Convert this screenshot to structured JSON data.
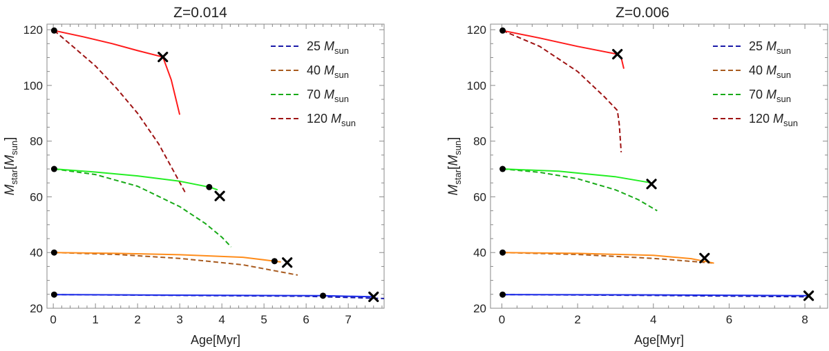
{
  "chart_data": [
    {
      "type": "line",
      "title": "Z=0.014",
      "xlabel": "Age[Myr]",
      "ylabel": {
        "main": "M",
        "sub": "star",
        "bracket_main": "M",
        "bracket_sub": "sun"
      },
      "xlim": [
        -0.15,
        7.85
      ],
      "ylim": [
        20,
        122
      ],
      "xticks": [
        0,
        1,
        2,
        3,
        4,
        5,
        6,
        7
      ],
      "yticks": [
        20,
        40,
        60,
        80,
        100,
        120
      ],
      "legend": [
        {
          "num": "25",
          "unit": "M",
          "unit_sub": "sun",
          "color": "#1a1aa8"
        },
        {
          "num": "40",
          "unit": "M",
          "unit_sub": "sun",
          "color": "#a85a1e"
        },
        {
          "num": "70",
          "unit": "M",
          "unit_sub": "sun",
          "color": "#18aa18"
        },
        {
          "num": "120",
          "unit": "M",
          "unit_sub": "sun",
          "color": "#9e1212"
        }
      ],
      "series": [
        {
          "name": "120 solid",
          "style": "solid",
          "color": "#ff1a1a",
          "points": [
            [
              0.02,
              119.7
            ],
            [
              0.7,
              117.5
            ],
            [
              1.4,
              115.0
            ],
            [
              2.0,
              112.5
            ],
            [
              2.6,
              110.2
            ],
            [
              2.8,
              102.0
            ],
            [
              3.0,
              89.5
            ]
          ]
        },
        {
          "name": "120 dashed",
          "style": "dashed",
          "color": "#9e1212",
          "points": [
            [
              0.02,
              119.7
            ],
            [
              0.5,
              113.5
            ],
            [
              1.0,
              107.0
            ],
            [
              1.5,
              99.0
            ],
            [
              2.0,
              90.0
            ],
            [
              2.5,
              79.0
            ],
            [
              2.9,
              68.0
            ],
            [
              3.15,
              61.0
            ]
          ]
        },
        {
          "name": "70 solid",
          "style": "solid",
          "color": "#22ee22",
          "points": [
            [
              0.02,
              70.0
            ],
            [
              1.0,
              68.9
            ],
            [
              2.0,
              67.5
            ],
            [
              3.0,
              65.6
            ],
            [
              3.7,
              63.5
            ],
            [
              3.75,
              63.3
            ],
            [
              3.9,
              62.5
            ]
          ]
        },
        {
          "name": "70 dashed",
          "style": "dashed",
          "color": "#18aa18",
          "points": [
            [
              0.02,
              70.0
            ],
            [
              1.0,
              68.0
            ],
            [
              2.0,
              63.8
            ],
            [
              3.0,
              56.5
            ],
            [
              3.6,
              50.5
            ],
            [
              4.0,
              45.5
            ],
            [
              4.22,
              42.0
            ]
          ]
        },
        {
          "name": "40 solid",
          "style": "solid",
          "color": "#ff8c1a",
          "points": [
            [
              0.02,
              40.0
            ],
            [
              1.5,
              39.7
            ],
            [
              3.0,
              39.2
            ],
            [
              4.5,
              38.3
            ],
            [
              5.25,
              36.9
            ],
            [
              5.4,
              36.6
            ]
          ]
        },
        {
          "name": "40 dashed",
          "style": "dashed",
          "color": "#a85a1e",
          "points": [
            [
              0.02,
              40.0
            ],
            [
              1.5,
              39.3
            ],
            [
              3.0,
              37.9
            ],
            [
              4.5,
              35.6
            ],
            [
              5.8,
              31.9
            ]
          ]
        },
        {
          "name": "25 solid",
          "style": "solid",
          "color": "#1a2ae8",
          "points": [
            [
              0.02,
              24.9
            ],
            [
              3.0,
              24.7
            ],
            [
              6.4,
              24.5
            ],
            [
              7.6,
              24.1
            ]
          ]
        },
        {
          "name": "25 dashed",
          "style": "dashed",
          "color": "#1a1aa8",
          "points": [
            [
              0.02,
              24.9
            ],
            [
              3.0,
              24.6
            ],
            [
              6.0,
              24.3
            ],
            [
              7.85,
              23.5
            ]
          ]
        }
      ],
      "dots": [
        [
          0.02,
          119.7
        ],
        [
          0.02,
          70.0
        ],
        [
          0.02,
          40.0
        ],
        [
          0.02,
          24.9
        ],
        [
          3.7,
          63.5
        ],
        [
          5.25,
          36.9
        ],
        [
          6.4,
          24.5
        ]
      ],
      "crosses": [
        [
          2.6,
          110.2
        ],
        [
          3.95,
          60.3
        ],
        [
          5.55,
          36.4
        ],
        [
          7.6,
          24.1
        ]
      ]
    },
    {
      "type": "line",
      "title": "Z=0.006",
      "xlabel": "Age[Myr]",
      "ylabel": {
        "main": "M",
        "sub": "star",
        "bracket_main": "M",
        "bracket_sub": "sun"
      },
      "xlim": [
        -0.3,
        8.6
      ],
      "ylim": [
        20,
        122
      ],
      "xticks": [
        0,
        2,
        4,
        6,
        8
      ],
      "yticks": [
        20,
        40,
        60,
        80,
        100,
        120
      ],
      "legend": [
        {
          "num": "25",
          "unit": "M",
          "unit_sub": "sun",
          "color": "#1a1aa8"
        },
        {
          "num": "40",
          "unit": "M",
          "unit_sub": "sun",
          "color": "#a85a1e"
        },
        {
          "num": "70",
          "unit": "M",
          "unit_sub": "sun",
          "color": "#18aa18"
        },
        {
          "num": "120",
          "unit": "M",
          "unit_sub": "sun",
          "color": "#9e1212"
        }
      ],
      "series": [
        {
          "name": "120 solid",
          "style": "solid",
          "color": "#ff1a1a",
          "points": [
            [
              0.02,
              119.7
            ],
            [
              1.0,
              117.0
            ],
            [
              2.0,
              114.0
            ],
            [
              3.05,
              111.2
            ],
            [
              3.15,
              110.0
            ],
            [
              3.22,
              106.0
            ]
          ]
        },
        {
          "name": "120 dashed",
          "style": "dashed",
          "color": "#9e1212",
          "points": [
            [
              0.02,
              119.7
            ],
            [
              1.0,
              114.0
            ],
            [
              2.0,
              105.0
            ],
            [
              2.7,
              96.0
            ],
            [
              3.05,
              91.0
            ],
            [
              3.1,
              86.0
            ],
            [
              3.15,
              76.0
            ]
          ]
        },
        {
          "name": "70 solid",
          "style": "solid",
          "color": "#22ee22",
          "points": [
            [
              0.02,
              70.0
            ],
            [
              1.5,
              69.2
            ],
            [
              3.0,
              67.2
            ],
            [
              3.95,
              65.0
            ]
          ]
        },
        {
          "name": "70 dashed",
          "style": "dashed",
          "color": "#18aa18",
          "points": [
            [
              0.02,
              70.0
            ],
            [
              1.0,
              68.8
            ],
            [
              2.0,
              66.5
            ],
            [
              3.0,
              62.5
            ],
            [
              3.6,
              59.0
            ],
            [
              4.1,
              55.0
            ]
          ]
        },
        {
          "name": "40 solid",
          "style": "solid",
          "color": "#ff8c1a",
          "points": [
            [
              0.02,
              40.0
            ],
            [
              2.0,
              39.7
            ],
            [
              4.0,
              39.0
            ],
            [
              5.0,
              37.8
            ],
            [
              5.6,
              36.2
            ]
          ]
        },
        {
          "name": "40 dashed",
          "style": "dashed",
          "color": "#a85a1e",
          "points": [
            [
              0.02,
              40.0
            ],
            [
              2.0,
              39.3
            ],
            [
              4.0,
              37.9
            ],
            [
              5.6,
              36.2
            ]
          ]
        },
        {
          "name": "25 solid",
          "style": "solid",
          "color": "#1a2ae8",
          "points": [
            [
              0.02,
              24.9
            ],
            [
              4.0,
              24.8
            ],
            [
              8.1,
              24.5
            ]
          ]
        },
        {
          "name": "25 dashed",
          "style": "dashed",
          "color": "#1a1aa8",
          "points": [
            [
              0.02,
              24.9
            ],
            [
              4.0,
              24.6
            ],
            [
              8.1,
              24.1
            ]
          ]
        }
      ],
      "dots": [
        [
          0.02,
          119.7
        ],
        [
          0.02,
          70.0
        ],
        [
          0.02,
          40.0
        ],
        [
          0.02,
          24.9
        ]
      ],
      "crosses": [
        [
          3.05,
          111.2
        ],
        [
          3.95,
          64.6
        ],
        [
          5.35,
          38.0
        ],
        [
          8.1,
          24.5
        ]
      ]
    }
  ]
}
